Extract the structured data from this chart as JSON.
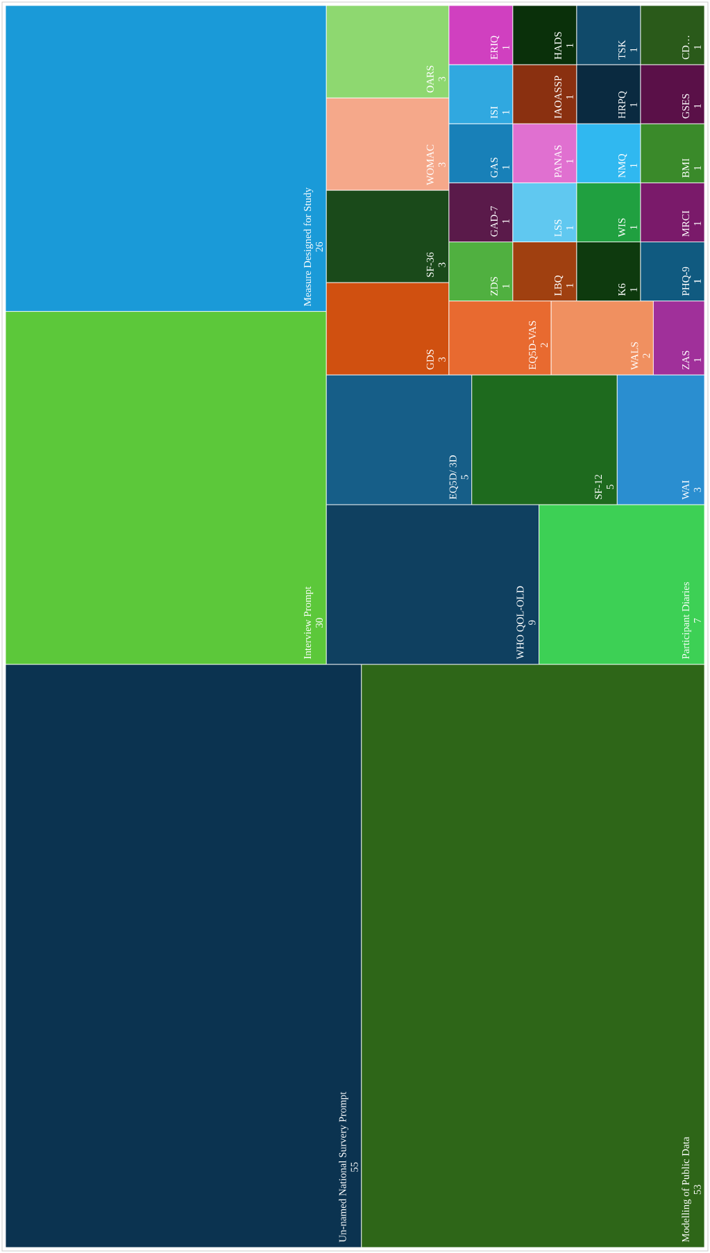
{
  "chart_data": {
    "type": "other",
    "data_labels": true,
    "categories": [
      "Un-named National Survery Prompt",
      "Modelling of Public Data",
      "Interview Prompt",
      "Measure Designed for Study",
      "WHO QOL-OLD",
      "Participant Diaries",
      "EQ5D/ 3D",
      "SF-12",
      "WAI",
      "GDS",
      "SF-36",
      "WOMAC",
      "OARS",
      "EQ5D-VAS",
      "WALS",
      "ZAS",
      "ZDS",
      "LBQ",
      "K6",
      "PHQ-9",
      "GAD-7",
      "GAS",
      "ISI",
      "ERIQ",
      "LSS",
      "WIS",
      "MRCI",
      "PANAS",
      "IAOASSP",
      "HADS",
      "NMQ",
      "BMI",
      "HRPQ",
      "TSK",
      "GSES",
      "CD…"
    ],
    "values": [
      55,
      53,
      30,
      26,
      9,
      7,
      5,
      5,
      3,
      3,
      3,
      3,
      3,
      2,
      2,
      1,
      1,
      1,
      1,
      1,
      1,
      1,
      1,
      1,
      1,
      1,
      1,
      1,
      1,
      1,
      1,
      1,
      1,
      1,
      1,
      1
    ],
    "colors": [
      "#0b3350",
      "#2e6618",
      "#5cc83a",
      "#1a9ad8",
      "#0f4060",
      "#3dd055",
      "#165e88",
      "#1e6a1e",
      "#2a8ed0",
      "#d05010",
      "#1a4a1a",
      "#f5a88a",
      "#8ed870",
      "#e86a30",
      "#f09060",
      "#a0309a",
      "#50b040",
      "#a04010",
      "#0e3a0e",
      "#105a80",
      "#5a1a4a",
      "#1880b8",
      "#30a8e0",
      "#d040c0",
      "#60c8f0",
      "#20a040",
      "#7a1a6a",
      "#e070d0",
      "#8a3010",
      "#0a300a",
      "#30b8f0",
      "#3a8a2a",
      "#0a2a40",
      "#104a6a",
      "#5a1048",
      "#2a5a1a"
    ]
  }
}
